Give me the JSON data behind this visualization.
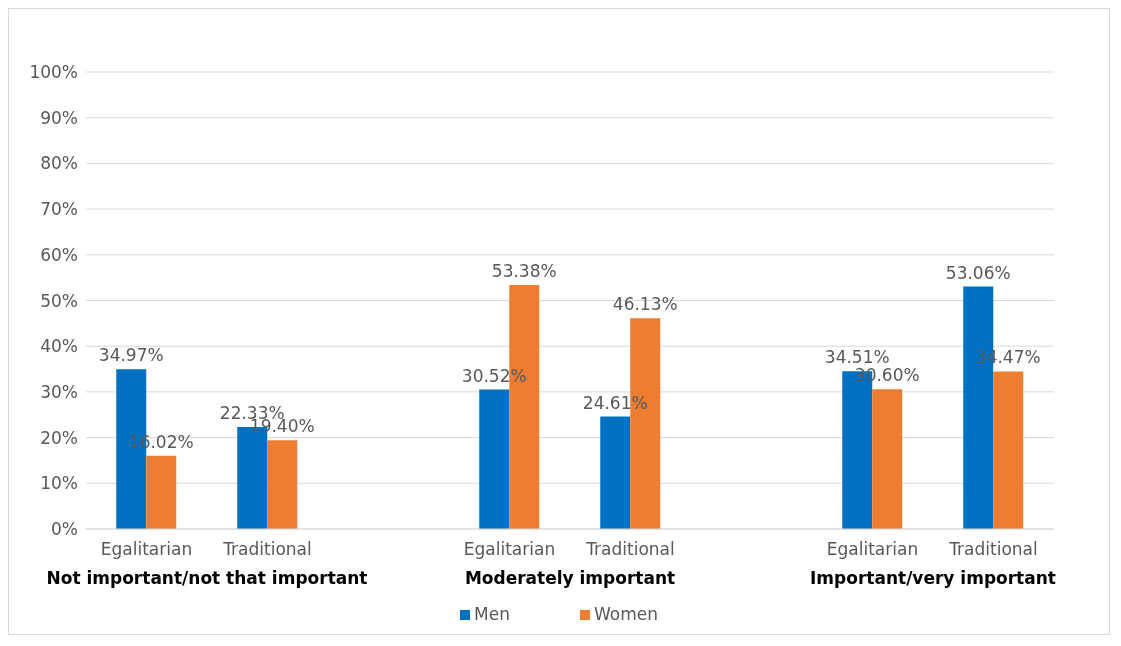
{
  "chart_data": {
    "type": "bar",
    "categories": [
      "Egalitarian",
      "Traditional",
      null,
      "Egalitarian",
      "Traditional",
      null,
      "Egalitarian",
      "Traditional"
    ],
    "series": [
      {
        "name": "Men",
        "color": "#0070c0",
        "values": [
          34.97,
          22.33,
          null,
          30.52,
          24.61,
          null,
          34.51,
          53.06
        ],
        "value_labels": [
          "34.97%",
          "22.33%",
          null,
          "30.52%",
          "24.61%",
          null,
          "34.51%",
          "53.06%"
        ]
      },
      {
        "name": "Women",
        "color": "#ed7d31",
        "values": [
          16.02,
          19.4,
          null,
          53.38,
          46.13,
          null,
          30.6,
          34.47
        ],
        "value_labels": [
          "16.02%",
          "19.40%",
          null,
          "53.38%",
          "46.13%",
          null,
          "30.60%",
          "34.47%"
        ]
      }
    ],
    "ylim": [
      0,
      100
    ],
    "yticks": [
      {
        "value": 0,
        "label": "0%"
      },
      {
        "value": 10,
        "label": "10%"
      },
      {
        "value": 20,
        "label": "20%"
      },
      {
        "value": 30,
        "label": "30%"
      },
      {
        "value": 40,
        "label": "40%"
      },
      {
        "value": 50,
        "label": "50%"
      },
      {
        "value": 60,
        "label": "60%"
      },
      {
        "value": 70,
        "label": "70%"
      },
      {
        "value": 80,
        "label": "80%"
      },
      {
        "value": 90,
        "label": "90%"
      },
      {
        "value": 100,
        "label": "100%"
      }
    ],
    "grid": "y",
    "legend": "bottom",
    "annotations": [
      "Not important/not that important",
      "Moderately important",
      "Important/very important"
    ]
  }
}
